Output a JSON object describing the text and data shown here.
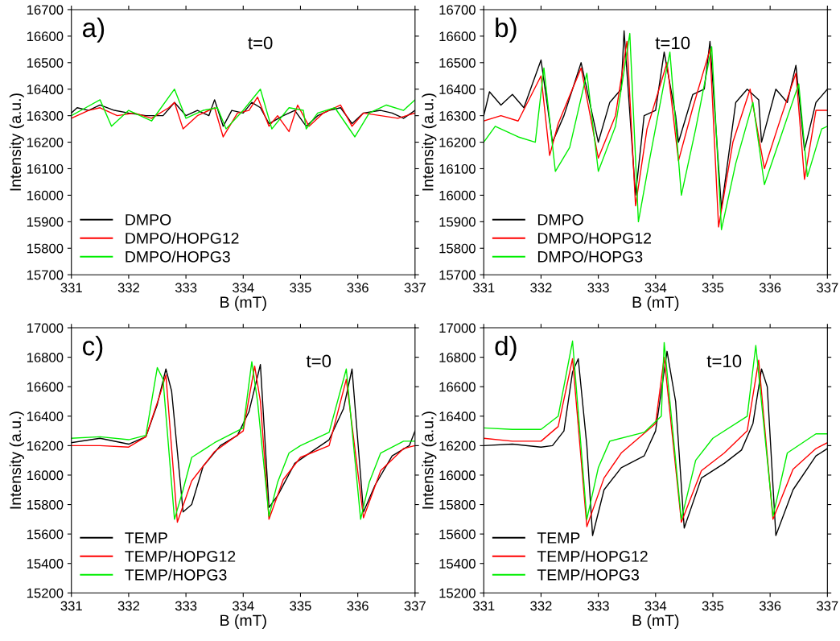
{
  "chart_data": [
    {
      "type": "line",
      "annotations": [
        "a)",
        "t=0"
      ],
      "xlabel": "B (mT)",
      "ylabel": "Intensity (a.u.)",
      "xlim": [
        331,
        337
      ],
      "xticks": [
        331,
        332,
        333,
        334,
        335,
        336,
        337
      ],
      "ylim": [
        15700,
        16700
      ],
      "yticks": [
        15700,
        15800,
        15900,
        16000,
        16100,
        16200,
        16300,
        16400,
        16500,
        16600,
        16700
      ],
      "legend": "bottom left",
      "grid": false,
      "marker": "none",
      "line_style": "solid",
      "series": [
        {
          "name": "DMPO",
          "color": "#000000",
          "x": [
            331.0,
            331.1,
            331.3,
            331.5,
            331.75,
            332.0,
            332.3,
            332.6,
            332.8,
            333.0,
            333.2,
            333.4,
            333.5,
            333.65,
            333.8,
            334.0,
            334.15,
            334.3,
            334.45,
            334.7,
            334.9,
            335.1,
            335.3,
            335.5,
            335.7,
            335.9,
            336.1,
            336.4,
            336.6,
            336.8,
            337.0
          ],
          "values": [
            16310,
            16330,
            16320,
            16340,
            16320,
            16310,
            16300,
            16300,
            16350,
            16300,
            16320,
            16300,
            16360,
            16260,
            16320,
            16310,
            16350,
            16330,
            16270,
            16300,
            16320,
            16260,
            16300,
            16320,
            16330,
            16270,
            16310,
            16320,
            16310,
            16290,
            16320
          ]
        },
        {
          "name": "DMPO/HOPG12",
          "color": "#ff0000",
          "x": [
            331.0,
            331.3,
            331.5,
            331.8,
            332.1,
            332.4,
            332.7,
            332.8,
            332.95,
            333.2,
            333.5,
            333.65,
            333.9,
            334.1,
            334.25,
            334.45,
            334.6,
            334.8,
            334.95,
            335.15,
            335.4,
            335.7,
            335.9,
            336.1,
            336.4,
            336.7,
            337.0
          ],
          "values": [
            16290,
            16320,
            16330,
            16300,
            16310,
            16290,
            16330,
            16350,
            16250,
            16300,
            16330,
            16220,
            16310,
            16320,
            16370,
            16260,
            16300,
            16240,
            16340,
            16260,
            16310,
            16340,
            16260,
            16310,
            16300,
            16290,
            16310
          ]
        },
        {
          "name": "DMPO/HOPG3",
          "color": "#00ee00",
          "x": [
            331.0,
            331.25,
            331.5,
            331.7,
            332.0,
            332.4,
            332.8,
            333.0,
            333.3,
            333.55,
            333.7,
            334.0,
            334.3,
            334.5,
            334.8,
            335.05,
            335.1,
            335.3,
            335.6,
            335.95,
            336.2,
            336.5,
            336.8,
            337.0
          ],
          "values": [
            16300,
            16330,
            16360,
            16260,
            16320,
            16280,
            16400,
            16290,
            16320,
            16330,
            16250,
            16320,
            16400,
            16250,
            16330,
            16320,
            16250,
            16310,
            16330,
            16220,
            16310,
            16340,
            16320,
            16360
          ]
        }
      ]
    },
    {
      "type": "line",
      "annotations": [
        "b)",
        "t=10"
      ],
      "xlabel": "B (mT)",
      "ylabel": "Intensity (a.u.)",
      "xlim": [
        331,
        337
      ],
      "xticks": [
        331,
        332,
        333,
        334,
        335,
        336,
        337
      ],
      "ylim": [
        15700,
        16700
      ],
      "yticks": [
        15700,
        15800,
        15900,
        16000,
        16100,
        16200,
        16300,
        16400,
        16500,
        16600,
        16700
      ],
      "legend": "bottom left",
      "grid": false,
      "marker": "none",
      "line_style": "solid",
      "series": [
        {
          "name": "DMPO",
          "color": "#000000",
          "x": [
            331.0,
            331.1,
            331.3,
            331.5,
            331.7,
            332.0,
            332.2,
            332.4,
            332.7,
            333.0,
            333.2,
            333.4,
            333.45,
            333.65,
            333.8,
            334.0,
            334.15,
            334.35,
            334.4,
            334.65,
            334.85,
            334.95,
            335.15,
            335.4,
            335.6,
            335.8,
            335.85,
            336.1,
            336.3,
            336.45,
            336.6,
            336.8,
            337.0
          ],
          "values": [
            16300,
            16390,
            16340,
            16380,
            16330,
            16510,
            16200,
            16300,
            16500,
            16200,
            16350,
            16400,
            16620,
            16000,
            16300,
            16320,
            16540,
            16300,
            16200,
            16380,
            16400,
            16580,
            15950,
            16350,
            16400,
            16360,
            16200,
            16400,
            16350,
            16490,
            16170,
            16350,
            16400
          ]
        },
        {
          "name": "DMPO/HOPG12",
          "color": "#ff0000",
          "x": [
            331.0,
            331.3,
            331.6,
            332.0,
            332.15,
            332.3,
            332.7,
            333.0,
            333.3,
            333.5,
            333.65,
            333.85,
            334.2,
            334.4,
            334.65,
            334.95,
            335.1,
            335.35,
            335.65,
            335.9,
            336.2,
            336.45,
            336.6,
            336.8,
            337.0
          ],
          "values": [
            16280,
            16300,
            16280,
            16450,
            16150,
            16270,
            16480,
            16140,
            16300,
            16580,
            15960,
            16250,
            16500,
            16130,
            16330,
            16550,
            15880,
            16200,
            16400,
            16100,
            16300,
            16460,
            16060,
            16320,
            16320
          ]
        },
        {
          "name": "DMPO/HOPG3",
          "color": "#00ee00",
          "x": [
            331.0,
            331.2,
            331.6,
            331.9,
            332.05,
            332.25,
            332.5,
            332.8,
            333.0,
            333.3,
            333.55,
            333.7,
            333.9,
            334.25,
            334.45,
            334.7,
            334.98,
            335.15,
            335.4,
            335.7,
            335.9,
            336.2,
            336.5,
            336.65,
            336.9,
            337.0
          ],
          "values": [
            16200,
            16260,
            16220,
            16200,
            16480,
            16090,
            16180,
            16460,
            16090,
            16260,
            16610,
            15900,
            16140,
            16540,
            16000,
            16250,
            16560,
            15870,
            16120,
            16350,
            16040,
            16230,
            16420,
            16070,
            16250,
            16260
          ]
        }
      ]
    },
    {
      "type": "line",
      "annotations": [
        "c)",
        "t=0"
      ],
      "xlabel": "B (mT)",
      "ylabel": "Intensity (a.u.)",
      "xlim": [
        331,
        337
      ],
      "xticks": [
        331,
        332,
        333,
        334,
        335,
        336,
        337
      ],
      "ylim": [
        15200,
        17000
      ],
      "yticks": [
        15200,
        15400,
        15600,
        15800,
        16000,
        16200,
        16400,
        16600,
        16800,
        17000
      ],
      "legend": "bottom left",
      "grid": false,
      "marker": "none",
      "line_style": "solid",
      "series": [
        {
          "name": "TEMP",
          "color": "#000000",
          "x": [
            331.0,
            331.5,
            332.0,
            332.3,
            332.5,
            332.65,
            332.75,
            332.95,
            333.1,
            333.3,
            333.6,
            333.9,
            334.1,
            334.3,
            334.45,
            334.6,
            334.9,
            335.2,
            335.5,
            335.75,
            335.9,
            336.1,
            336.3,
            336.6,
            336.9,
            337.0
          ],
          "values": [
            16220,
            16250,
            16210,
            16260,
            16480,
            16720,
            16570,
            15750,
            15800,
            16060,
            16200,
            16270,
            16430,
            16750,
            15780,
            15860,
            16080,
            16160,
            16240,
            16450,
            16720,
            15750,
            15930,
            16130,
            16200,
            16300
          ]
        },
        {
          "name": "TEMP/HOPG12",
          "color": "#ff0000",
          "x": [
            331.0,
            331.5,
            332.0,
            332.3,
            332.55,
            332.65,
            332.85,
            333.1,
            333.5,
            334.0,
            334.2,
            334.3,
            334.45,
            334.7,
            335.0,
            335.5,
            335.8,
            336.1,
            336.4,
            336.8,
            337.0
          ],
          "values": [
            16200,
            16200,
            16190,
            16260,
            16550,
            16680,
            15680,
            15960,
            16160,
            16300,
            16740,
            16500,
            15700,
            15970,
            16120,
            16200,
            16650,
            15710,
            16030,
            16180,
            16200
          ]
        },
        {
          "name": "TEMP/HOPG3",
          "color": "#00ee00",
          "x": [
            331.0,
            331.5,
            332.0,
            332.3,
            332.5,
            332.6,
            332.8,
            332.95,
            333.1,
            333.5,
            334.0,
            334.15,
            334.25,
            334.45,
            334.6,
            334.8,
            335.0,
            335.5,
            335.8,
            336.05,
            336.2,
            336.4,
            336.8,
            337.0
          ],
          "values": [
            16250,
            16260,
            16240,
            16270,
            16730,
            16650,
            15700,
            15900,
            16120,
            16220,
            16320,
            16770,
            16500,
            15720,
            15950,
            16150,
            16200,
            16290,
            16720,
            15700,
            15950,
            16150,
            16230,
            16230
          ]
        }
      ]
    },
    {
      "type": "line",
      "annotations": [
        "d)",
        "t=10"
      ],
      "xlabel": "B (mT)",
      "ylabel": "Intensity (a.u.)",
      "xlim": [
        331,
        337
      ],
      "xticks": [
        331,
        332,
        333,
        334,
        335,
        336,
        337
      ],
      "ylim": [
        15200,
        17000
      ],
      "yticks": [
        15200,
        15400,
        15600,
        15800,
        16000,
        16200,
        16400,
        16600,
        16800,
        17000
      ],
      "legend": "bottom left",
      "grid": false,
      "marker": "none",
      "line_style": "solid",
      "series": [
        {
          "name": "TEMP",
          "color": "#000000",
          "x": [
            331.0,
            331.5,
            332.0,
            332.2,
            332.4,
            332.55,
            332.65,
            332.8,
            332.9,
            333.1,
            333.4,
            333.8,
            334.0,
            334.2,
            334.35,
            334.5,
            334.8,
            335.2,
            335.5,
            335.7,
            335.85,
            335.95,
            336.1,
            336.4,
            336.8,
            337.0
          ],
          "values": [
            16200,
            16210,
            16190,
            16200,
            16300,
            16700,
            16790,
            16200,
            15590,
            15900,
            16050,
            16130,
            16300,
            16840,
            16500,
            15640,
            15980,
            16080,
            16170,
            16350,
            16720,
            16600,
            15590,
            15900,
            16130,
            16180
          ]
        },
        {
          "name": "TEMP/HOPG12",
          "color": "#ff0000",
          "x": [
            331.0,
            331.5,
            332.0,
            332.3,
            332.55,
            332.8,
            333.1,
            333.4,
            334.0,
            334.15,
            334.45,
            334.8,
            335.2,
            335.6,
            335.8,
            336.05,
            336.4,
            336.8,
            337.0
          ],
          "values": [
            16250,
            16230,
            16230,
            16330,
            16790,
            15650,
            15980,
            16150,
            16350,
            16800,
            15680,
            16030,
            16150,
            16300,
            16780,
            15700,
            16040,
            16180,
            16220
          ]
        },
        {
          "name": "TEMP/HOPG3",
          "color": "#00ee00",
          "x": [
            331.0,
            331.5,
            332.0,
            332.3,
            332.55,
            332.8,
            333.0,
            333.2,
            333.8,
            334.1,
            334.15,
            334.45,
            334.7,
            335.0,
            335.6,
            335.75,
            336.05,
            336.3,
            336.8,
            337.0
          ],
          "values": [
            16320,
            16310,
            16310,
            16400,
            16910,
            15700,
            16050,
            16230,
            16290,
            16400,
            16900,
            15700,
            16100,
            16250,
            16400,
            16880,
            15720,
            16150,
            16280,
            16280
          ]
        }
      ]
    }
  ]
}
